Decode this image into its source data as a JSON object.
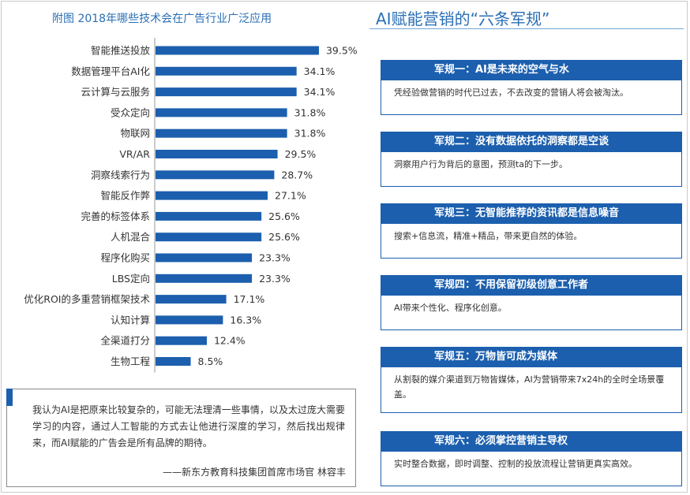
{
  "chart_data": {
    "type": "bar",
    "orientation": "horizontal",
    "title": "附图 2018年哪些技术会在广告行业广泛应用",
    "categories": [
      "智能推送投放",
      "数据管理平台AI化",
      "云计算与云服务",
      "受众定向",
      "物联网",
      "VR/AR",
      "洞察线索行为",
      "智能反作弊",
      "完善的标签体系",
      "人机混合",
      "程序化购买",
      "LBS定向",
      "优化ROI的多重营销框架技术",
      "认知计算",
      "全渠道打分",
      "生物工程"
    ],
    "values": [
      39.5,
      34.1,
      34.1,
      31.8,
      31.8,
      29.5,
      28.7,
      27.1,
      25.6,
      25.6,
      23.3,
      23.3,
      17.1,
      16.3,
      12.4,
      8.5
    ],
    "value_labels": [
      "39.5%",
      "34.1%",
      "34.1%",
      "31.8%",
      "31.8%",
      "29.5%",
      "28.7%",
      "27.1%",
      "25.6%",
      "25.6%",
      "23.3%",
      "23.3%",
      "17.1%",
      "16.3%",
      "12.4%",
      "8.5%"
    ],
    "bar_color": "#1c5fae",
    "axis_color": "#999999",
    "grid": false,
    "legend": "none"
  },
  "quote": {
    "text": "我认为AI是把原来比较复杂的，可能无法理清一些事情，以及太过庞大需要学习的内容，通过人工智能的方式去让他进行深度的学习，然后找出规律来，而AI赋能的广告会是所有品牌的期待。",
    "attribution": "——新东方教育科技集团首席市场官  林容丰"
  },
  "right": {
    "title": "AI赋能营销的“六条军规”",
    "rules": [
      {
        "head": "军规一：AI是未来的空气与水",
        "body": "凭经验做营销的时代已过去，不去改变的营销人将会被淘汰。"
      },
      {
        "head": "军规二：没有数据依托的洞察都是空谈",
        "body": "洞察用户行为背后的意图，预测ta的下一步。"
      },
      {
        "head": "军规三：无智能推荐的资讯都是信息噪音",
        "body": "搜索+信息流，精准+精品，带来更自然的体验。"
      },
      {
        "head": "军规四：不用保留初级创意工作者",
        "body": "AI带来个性化、程序化创意。"
      },
      {
        "head": "军规五：万物皆可成为媒体",
        "body": "从割裂的媒介渠道到万物皆媒体，AI为营销带来7x24h的全时全场景覆盖。"
      },
      {
        "head": "军规六：必须掌控营销主导权",
        "body": "实时整合数据，即时调整、控制的投放流程让营销更真实高效。"
      }
    ]
  }
}
